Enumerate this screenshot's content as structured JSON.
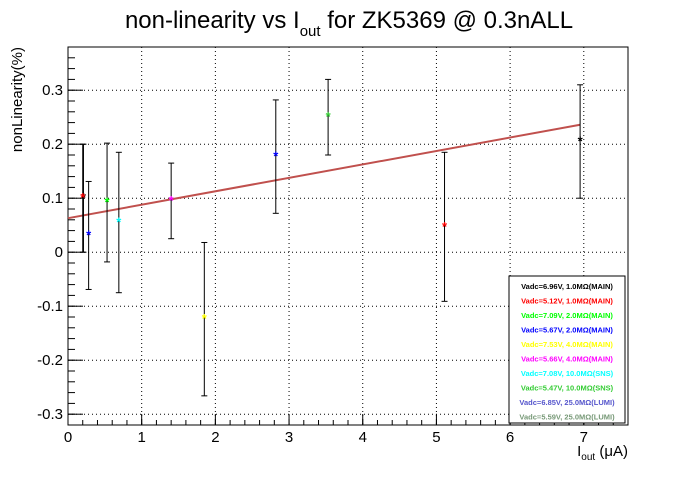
{
  "chart_data": {
    "type": "scatter",
    "title_main": "non-linearity vs I",
    "title_sub": "out",
    "title_rest": " for ZK5369 @ 0.3nALL",
    "ylabel": "nonLinearity(%)",
    "xlabel_main": "I",
    "xlabel_sub": "out",
    "xlabel_unit": " (μA)",
    "xlim": [
      0,
      7.6
    ],
    "ylim": [
      -0.32,
      0.38
    ],
    "xticks": [
      0,
      1,
      2,
      3,
      4,
      5,
      6,
      7
    ],
    "yticks": [
      -0.3,
      -0.2,
      -0.1,
      0,
      0.1,
      0.2,
      0.3
    ],
    "grid": true,
    "legend_position": "bottom-right",
    "fit_line": {
      "x": [
        0,
        6.95
      ],
      "y": [
        0.063,
        0.236
      ],
      "color": "#c0504d"
    },
    "series": [
      {
        "name": "Vadc=6.96V, 1.0MΩ(MAIN)",
        "color": "#000000",
        "x": [
          0.21,
          6.95
        ],
        "y": [
          0.1,
          0.205
        ],
        "err": [
          0.1,
          0.105
        ]
      },
      {
        "name": "Vadc=5.12V, 1.0MΩ(MAIN)",
        "color": "#ff0000",
        "x": [
          0.2,
          5.11
        ],
        "y": [
          0.1,
          0.047
        ],
        "err": [
          0.1,
          0.138
        ]
      },
      {
        "name": "Vadc=7.09V, 2.0MΩ(MAIN)",
        "color": "#00ff00",
        "x": [
          0.53
        ],
        "y": [
          0.092
        ],
        "err": [
          0.11
        ]
      },
      {
        "name": "Vadc=5.67V, 2.0MΩ(MAIN)",
        "color": "#0000ff",
        "x": [
          0.28,
          2.82
        ],
        "y": [
          0.031,
          0.177
        ],
        "err": [
          0.1,
          0.105
        ]
      },
      {
        "name": "Vadc=7.53V, 4.0MΩ(MAIN)",
        "color": "#ffff00",
        "x": [
          1.85
        ],
        "y": [
          -0.124
        ],
        "err": [
          0.142
        ]
      },
      {
        "name": "Vadc=5.66V, 4.0MΩ(MAIN)",
        "color": "#ff00ff",
        "x": [
          1.4
        ],
        "y": [
          0.095
        ],
        "err": [
          0.07
        ]
      },
      {
        "name": "Vadc=7.08V, 10.0MΩ(SNS)",
        "color": "#00ffff",
        "x": [
          0.69
        ],
        "y": [
          0.055
        ],
        "err": [
          0.13
        ]
      },
      {
        "name": "Vadc=5.47V, 10.0MΩ(SNS)",
        "color": "#33cc33",
        "x": [
          3.53
        ],
        "y": [
          0.25
        ],
        "err": [
          0.07
        ]
      },
      {
        "name": "Vadc=6.85V, 25.0MΩ(LUMI)",
        "color": "#5555cc",
        "x": [],
        "y": [],
        "err": []
      },
      {
        "name": "Vadc=5.59V, 25.0MΩ(LUMI)",
        "color": "#779977",
        "x": [],
        "y": [],
        "err": []
      }
    ]
  }
}
